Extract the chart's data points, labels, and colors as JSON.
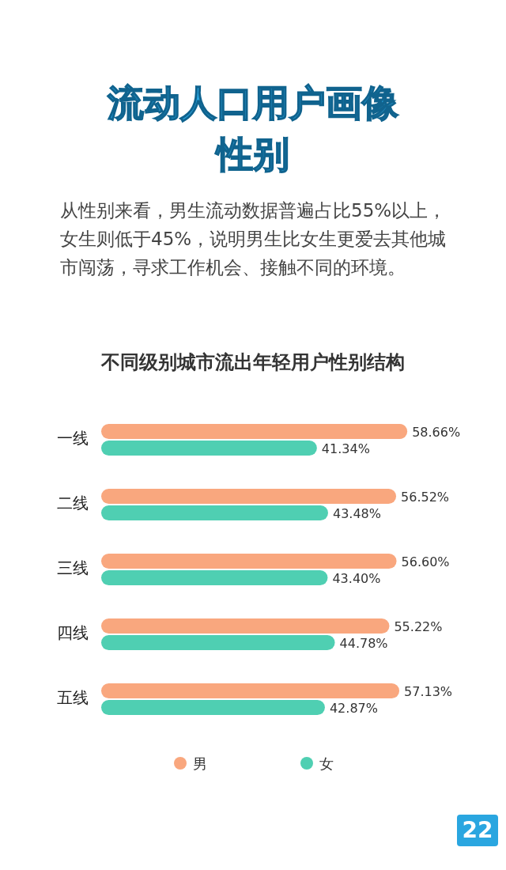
{
  "chart_data": {
    "type": "bar",
    "orientation": "horizontal",
    "title": "不同级别城市流出年轻用户性别结构",
    "annotations": [
      "流动人口用户画像",
      "性别",
      "从性别来看，男生流动数据普遍占比55%以上，女生则低于45%，说明男生比女生更爱去其他城市闯荡，寻求工作机会、接触不同的环境。",
      "22"
    ],
    "categories": [
      "一线",
      "二线",
      "三线",
      "四线",
      "五线"
    ],
    "series": [
      {
        "name": "男",
        "color": "#f9a77e",
        "values": [
          58.66,
          56.52,
          56.6,
          55.22,
          57.13
        ],
        "value_labels": [
          "58.66%",
          "56.52%",
          "56.60%",
          "55.22%",
          "57.13%"
        ]
      },
      {
        "name": "女",
        "color": "#4fcfb2",
        "values": [
          41.34,
          43.48,
          43.4,
          44.78,
          42.87
        ],
        "value_labels": [
          "41.34%",
          "43.48%",
          "43.40%",
          "44.78%",
          "42.87%"
        ]
      }
    ],
    "legend": "bottom"
  }
}
